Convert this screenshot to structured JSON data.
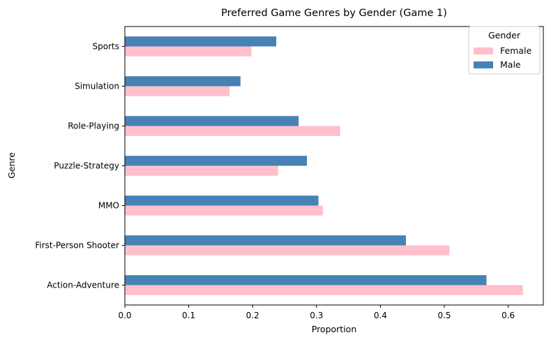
{
  "chart_data": {
    "type": "bar",
    "orientation": "horizontal",
    "title": "Preferred Game Genres by Gender (Game 1)",
    "xlabel": "Proportion",
    "ylabel": "Genre",
    "categories": [
      "Action-Adventure",
      "First-Person Shooter",
      "MMO",
      "Puzzle-Strategy",
      "Role-Playing",
      "Simulation",
      "Sports"
    ],
    "series": [
      {
        "name": "Female",
        "color": "#ffc0cb",
        "values": [
          0.623,
          0.508,
          0.31,
          0.24,
          0.337,
          0.164,
          0.198
        ]
      },
      {
        "name": "Male",
        "color": "#4682b4",
        "values": [
          0.566,
          0.44,
          0.303,
          0.285,
          0.272,
          0.181,
          0.237
        ]
      }
    ],
    "xlim": [
      0,
      0.655
    ],
    "xticks": [
      "0.0",
      "0.1",
      "0.2",
      "0.3",
      "0.4",
      "0.5",
      "0.6"
    ],
    "legend": {
      "title": "Gender",
      "placement": "top-right"
    },
    "grid": false
  }
}
